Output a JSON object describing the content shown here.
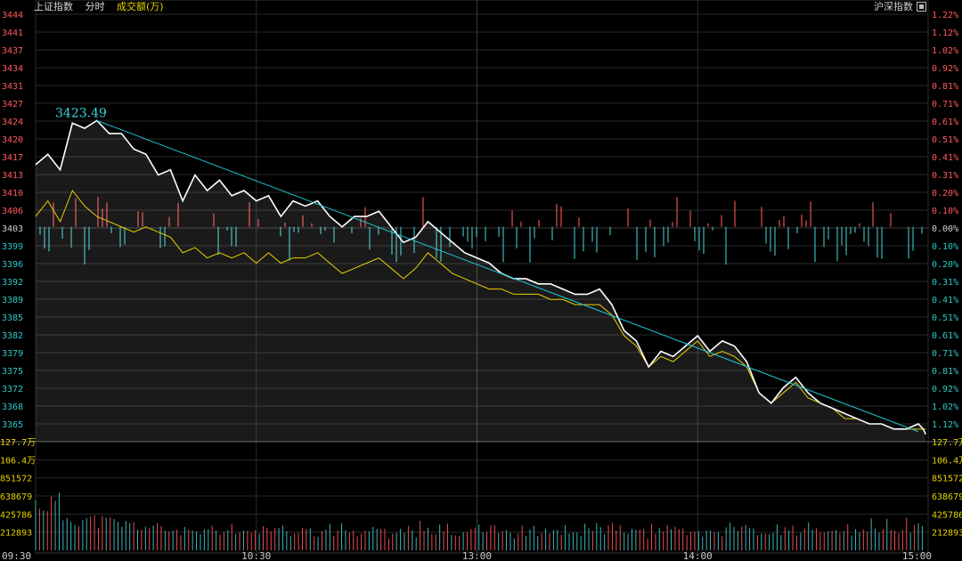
{
  "header": {
    "index_name": "上证指数",
    "period": "分时",
    "volume_label": "成交额(万)",
    "right_label": "沪深指数"
  },
  "colors": {
    "price_line": "#ffffff",
    "avg_line": "#e8d200",
    "trend_line": "#1fc7d4",
    "up_axis": "#ff5a5a",
    "down_axis": "#2fc7c7",
    "flat_axis": "#d0d0d0",
    "vol_up": "#e85050",
    "vol_down": "#3cb6b6",
    "grid": "#2a2a2a",
    "bg": "#000000"
  },
  "chart_data": {
    "type": "line",
    "prev_close": 3403,
    "high_label": "3423.49",
    "price_ticks": [
      "3444",
      "3441",
      "3437",
      "3434",
      "3431",
      "3427",
      "3424",
      "3420",
      "3417",
      "3413",
      "3410",
      "3406",
      "3403",
      "3399",
      "3396",
      "3392",
      "3389",
      "3385",
      "3382",
      "3379",
      "3375",
      "3372",
      "3368",
      "3365"
    ],
    "pct_ticks": [
      "1.22%",
      "1.12%",
      "1.02%",
      "0.92%",
      "0.81%",
      "0.71%",
      "0.61%",
      "0.51%",
      "0.41%",
      "0.31%",
      "0.20%",
      "0.10%",
      "0.00%",
      "0.10%",
      "0.20%",
      "0.31%",
      "0.41%",
      "0.51%",
      "0.61%",
      "0.71%",
      "0.81%",
      "0.92%",
      "1.02%",
      "1.12%"
    ],
    "volume_ticks_left": [
      "127.7万",
      "106.4万",
      "851572",
      "638679",
      "425786",
      "212893"
    ],
    "volume_ticks_right": [
      "127.7万",
      "106.4万",
      "851572",
      "638679",
      "425786",
      "212893"
    ],
    "time_ticks": [
      "09:30",
      "10:30",
      "13:00",
      "14:00",
      "15:00"
    ],
    "ylim": [
      3363,
      3444
    ],
    "price_points": [
      [
        0,
        3415
      ],
      [
        5,
        3417
      ],
      [
        10,
        3414
      ],
      [
        15,
        3423
      ],
      [
        20,
        3422
      ],
      [
        25,
        3423.5
      ],
      [
        30,
        3421
      ],
      [
        35,
        3421
      ],
      [
        40,
        3418
      ],
      [
        45,
        3417
      ],
      [
        50,
        3413
      ],
      [
        55,
        3414
      ],
      [
        60,
        3408
      ],
      [
        65,
        3413
      ],
      [
        70,
        3410
      ],
      [
        75,
        3412
      ],
      [
        80,
        3409
      ],
      [
        85,
        3410
      ],
      [
        90,
        3408
      ],
      [
        95,
        3409
      ],
      [
        100,
        3405
      ],
      [
        105,
        3408
      ],
      [
        110,
        3407
      ],
      [
        115,
        3408
      ],
      [
        120,
        3405
      ],
      [
        125,
        3403
      ],
      [
        130,
        3405
      ],
      [
        135,
        3405
      ],
      [
        140,
        3406
      ],
      [
        145,
        3403
      ],
      [
        150,
        3400
      ],
      [
        155,
        3401
      ],
      [
        160,
        3404
      ],
      [
        165,
        3402
      ],
      [
        170,
        3400
      ],
      [
        175,
        3398
      ],
      [
        180,
        3397
      ],
      [
        185,
        3396
      ],
      [
        190,
        3394
      ],
      [
        195,
        3393
      ],
      [
        200,
        3393
      ],
      [
        205,
        3392
      ],
      [
        210,
        3392
      ],
      [
        215,
        3391
      ],
      [
        220,
        3390
      ],
      [
        225,
        3390
      ],
      [
        230,
        3391
      ],
      [
        235,
        3388
      ],
      [
        240,
        3383
      ],
      [
        245,
        3381
      ],
      [
        250,
        3376
      ],
      [
        255,
        3379
      ],
      [
        260,
        3378
      ],
      [
        265,
        3380
      ],
      [
        270,
        3382
      ],
      [
        275,
        3379
      ],
      [
        280,
        3381
      ],
      [
        285,
        3380
      ],
      [
        290,
        3377
      ],
      [
        295,
        3371
      ],
      [
        300,
        3369
      ],
      [
        305,
        3372
      ],
      [
        310,
        3374
      ],
      [
        315,
        3371
      ],
      [
        320,
        3369
      ],
      [
        325,
        3368
      ],
      [
        330,
        3367
      ],
      [
        335,
        3366
      ],
      [
        340,
        3365
      ],
      [
        345,
        3365
      ],
      [
        350,
        3364
      ],
      [
        355,
        3364
      ],
      [
        360,
        3365
      ],
      [
        362,
        3364
      ],
      [
        363,
        3363
      ]
    ],
    "avg_points": [
      [
        0,
        3405
      ],
      [
        5,
        3408
      ],
      [
        10,
        3404
      ],
      [
        15,
        3410
      ],
      [
        20,
        3407
      ],
      [
        25,
        3405
      ],
      [
        30,
        3404
      ],
      [
        35,
        3403
      ],
      [
        40,
        3402
      ],
      [
        45,
        3403
      ],
      [
        50,
        3402
      ],
      [
        55,
        3401
      ],
      [
        60,
        3398
      ],
      [
        65,
        3399
      ],
      [
        70,
        3397
      ],
      [
        75,
        3398
      ],
      [
        80,
        3397
      ],
      [
        85,
        3398
      ],
      [
        90,
        3396
      ],
      [
        95,
        3398
      ],
      [
        100,
        3396
      ],
      [
        105,
        3397
      ],
      [
        110,
        3397
      ],
      [
        115,
        3398
      ],
      [
        120,
        3396
      ],
      [
        125,
        3394
      ],
      [
        130,
        3395
      ],
      [
        135,
        3396
      ],
      [
        140,
        3397
      ],
      [
        145,
        3395
      ],
      [
        150,
        3393
      ],
      [
        155,
        3395
      ],
      [
        160,
        3398
      ],
      [
        165,
        3396
      ],
      [
        170,
        3394
      ],
      [
        175,
        3393
      ],
      [
        180,
        3392
      ],
      [
        185,
        3391
      ],
      [
        190,
        3391
      ],
      [
        195,
        3390
      ],
      [
        200,
        3390
      ],
      [
        205,
        3390
      ],
      [
        210,
        3389
      ],
      [
        215,
        3389
      ],
      [
        220,
        3388
      ],
      [
        225,
        3388
      ],
      [
        230,
        3388
      ],
      [
        235,
        3386
      ],
      [
        240,
        3382
      ],
      [
        245,
        3380
      ],
      [
        250,
        3376
      ],
      [
        255,
        3378
      ],
      [
        260,
        3377
      ],
      [
        265,
        3379
      ],
      [
        270,
        3381
      ],
      [
        275,
        3378
      ],
      [
        280,
        3379
      ],
      [
        285,
        3378
      ],
      [
        290,
        3376
      ],
      [
        295,
        3371
      ],
      [
        300,
        3369
      ],
      [
        305,
        3371
      ],
      [
        310,
        3373
      ],
      [
        315,
        3370
      ],
      [
        320,
        3369
      ],
      [
        325,
        3368
      ],
      [
        330,
        3366
      ],
      [
        335,
        3366
      ],
      [
        340,
        3365
      ],
      [
        345,
        3365
      ],
      [
        350,
        3364
      ],
      [
        355,
        3364
      ],
      [
        360,
        3364
      ],
      [
        362,
        3364
      ],
      [
        363,
        3364
      ]
    ],
    "trend_line": [
      [
        25,
        3423.5
      ],
      [
        360,
        3363.5
      ]
    ],
    "x_range": [
      0,
      364
    ],
    "volume_ylim": [
      0,
      1277000
    ]
  }
}
